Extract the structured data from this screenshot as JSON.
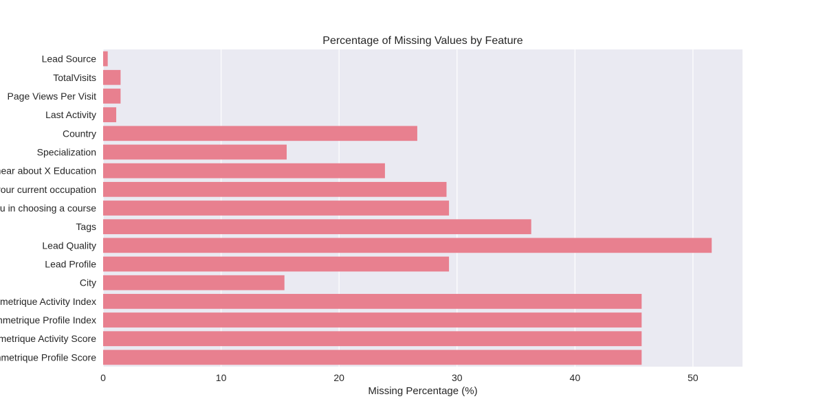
{
  "chart_data": {
    "type": "bar",
    "orientation": "horizontal",
    "title": "Percentage of Missing Values by Feature",
    "xlabel": "Missing Percentage (%)",
    "ylabel": "",
    "xlim": [
      0,
      54.2
    ],
    "xticks": [
      0,
      10,
      20,
      30,
      40,
      50
    ],
    "grid": true,
    "bar_color": "#e8808f",
    "background_color": "#eaeaf2",
    "categories": [
      "Lead Source",
      "TotalVisits",
      "Page Views Per Visit",
      "Last Activity",
      "Country",
      "Specialization",
      "How did you hear about X Education",
      "What is your current occupation",
      "What matters most to you in choosing a course",
      "Tags",
      "Lead Quality",
      "Lead Profile",
      "City",
      "Asymmetrique Activity Index",
      "Asymmetrique Profile Index",
      "Asymmetrique Activity Score",
      "Asymmetrique Profile Score"
    ],
    "values": [
      0.39,
      1.48,
      1.48,
      1.11,
      26.63,
      15.56,
      23.89,
      29.11,
      29.32,
      36.29,
      51.59,
      29.32,
      15.37,
      45.65,
      45.65,
      45.65,
      45.65
    ]
  }
}
